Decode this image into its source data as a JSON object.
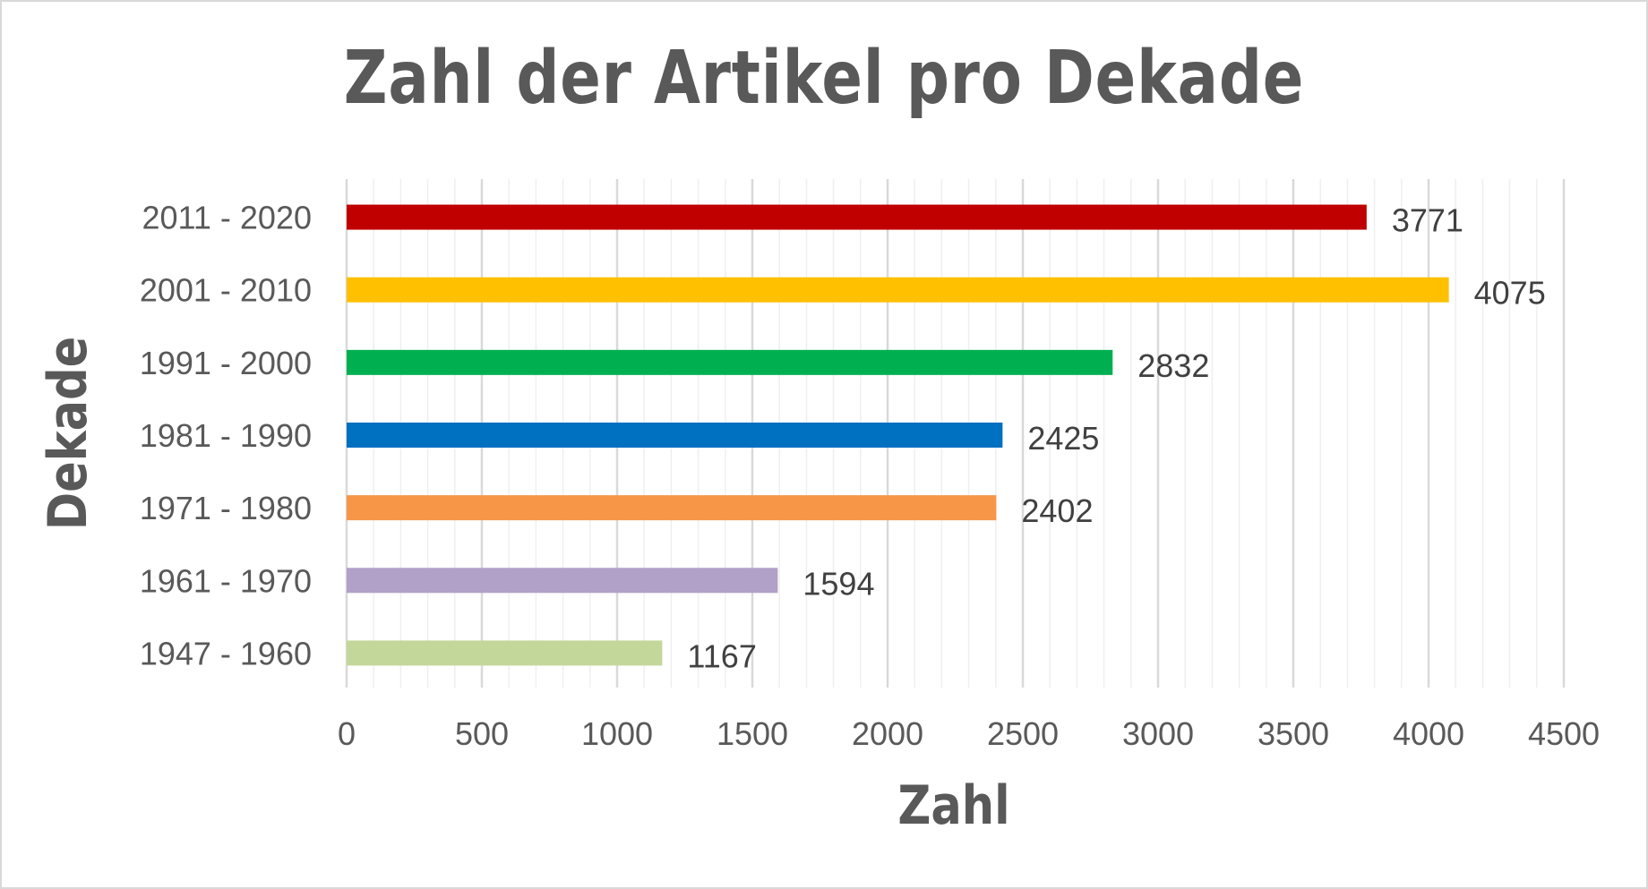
{
  "chart_data": {
    "type": "bar",
    "orientation": "horizontal",
    "title": "Zahl der Artikel pro Dekade",
    "xlabel": "Zahl",
    "ylabel": "Dekade",
    "xlim": [
      0,
      4500
    ],
    "xticks": [
      0,
      500,
      1000,
      1500,
      2000,
      2500,
      3000,
      3500,
      4000,
      4500
    ],
    "grid": true,
    "legend": "none",
    "categories": [
      "2011 - 2020",
      "2001 - 2010",
      "1991 - 2000",
      "1981 - 1990",
      "1971 - 1980",
      "1961 - 1970",
      "1947 - 1960"
    ],
    "values": [
      3771,
      4075,
      2832,
      2425,
      2402,
      1594,
      1167
    ],
    "colors": [
      "#c00000",
      "#ffc000",
      "#00b050",
      "#0070c0",
      "#f79646",
      "#b1a0c7",
      "#c4d79b"
    ]
  }
}
